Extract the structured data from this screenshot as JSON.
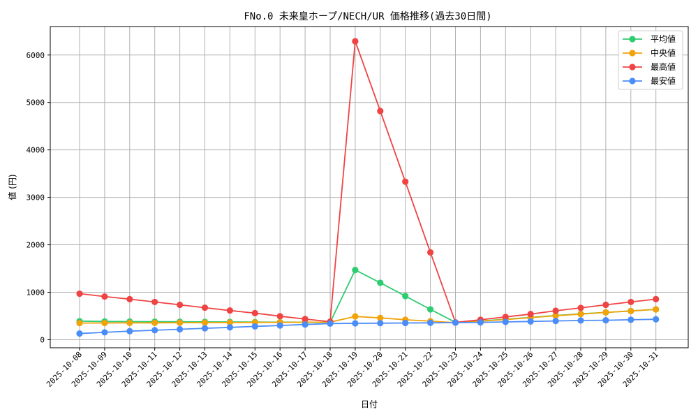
{
  "chart_data": {
    "type": "line",
    "title": "FNo.0 未来皇ホープ/NECH/UR 価格推移(過去30日間)",
    "xlabel": "日付",
    "ylabel": "値 (円)",
    "ylim": [
      -170,
      6600
    ],
    "yticks": [
      0,
      1000,
      2000,
      3000,
      4000,
      5000,
      6000
    ],
    "grid": true,
    "legend_position": "top-right",
    "categories": [
      "2025-10-08",
      "2025-10-09",
      "2025-10-10",
      "2025-10-11",
      "2025-10-12",
      "2025-10-13",
      "2025-10-14",
      "2025-10-15",
      "2025-10-16",
      "2025-10-17",
      "2025-10-18",
      "2025-10-19",
      "2025-10-20",
      "2025-10-21",
      "2025-10-22",
      "2025-10-23",
      "2025-10-24",
      "2025-10-25",
      "2025-10-26",
      "2025-10-27",
      "2025-10-28",
      "2025-10-29",
      "2025-10-30",
      "2025-10-31"
    ],
    "series": [
      {
        "name": "平均値",
        "color": "#2ecc71",
        "values": [
          390,
          385,
          382,
          380,
          378,
          376,
          374,
          372,
          370,
          368,
          366,
          1470,
          1200,
          920,
          640,
          365,
          395,
          430,
          470,
          510,
          545,
          575,
          605,
          640
        ]
      },
      {
        "name": "中央値",
        "color": "#f0a30a",
        "values": [
          350,
          352,
          354,
          356,
          358,
          360,
          362,
          364,
          366,
          368,
          370,
          490,
          460,
          420,
          390,
          360,
          390,
          425,
          465,
          505,
          540,
          575,
          605,
          640
        ]
      },
      {
        "name": "最高値",
        "color": "#ef4444",
        "values": [
          970,
          910,
          855,
          795,
          735,
          675,
          615,
          560,
          495,
          435,
          380,
          6290,
          4820,
          3330,
          1840,
          365,
          420,
          480,
          540,
          610,
          670,
          735,
          795,
          855
        ]
      },
      {
        "name": "最安値",
        "color": "#4b8df8",
        "values": [
          130,
          155,
          180,
          200,
          220,
          240,
          260,
          280,
          300,
          320,
          340,
          345,
          348,
          352,
          356,
          360,
          365,
          375,
          385,
          395,
          405,
          410,
          420,
          430
        ]
      }
    ]
  }
}
